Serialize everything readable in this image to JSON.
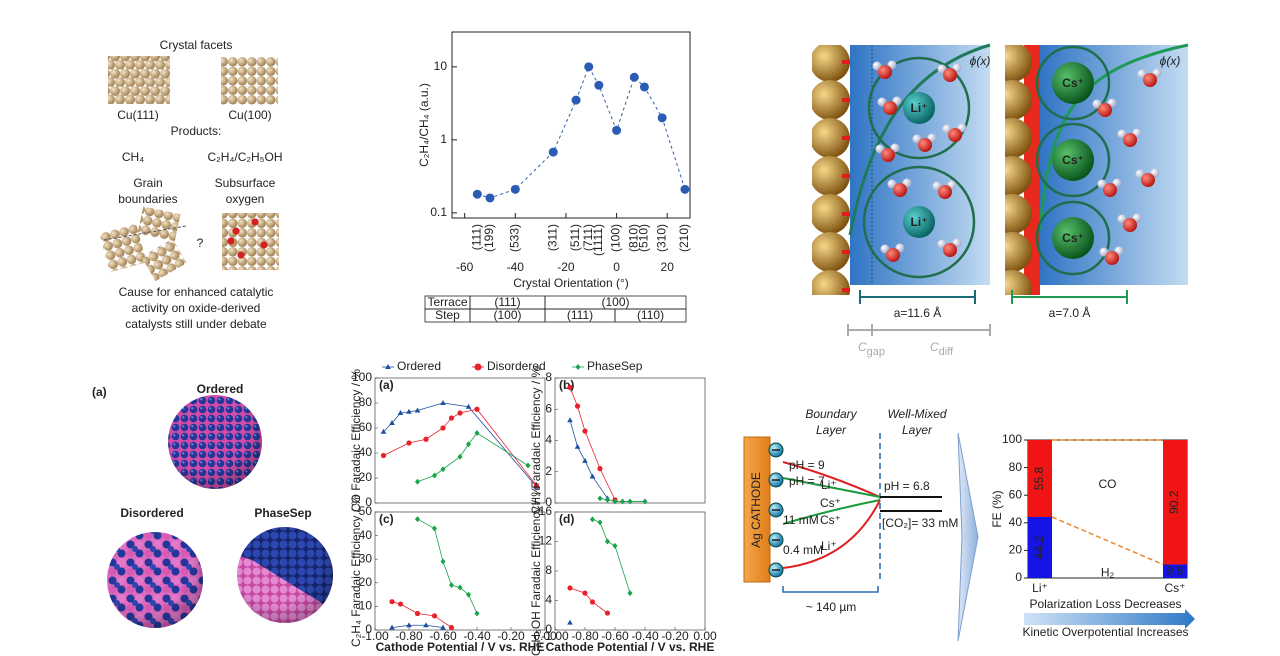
{
  "facets_panel": {
    "title": "Crystal facets",
    "facets": [
      "Cu(111)",
      "Cu(100)"
    ],
    "products_heading": "Products:",
    "products": [
      "CH₄",
      "C₂H₄/C₂H₅OH"
    ],
    "causes": [
      [
        "Grain",
        "boundaries"
      ],
      [
        "Subsurface",
        "oxygen"
      ]
    ],
    "unknown_marker": "?",
    "conclusion": [
      "Cause for enhanced catalytic",
      "activity on oxide-derived",
      "catalysts still under debate"
    ]
  },
  "chart_data": [
    {
      "type": "scatter",
      "log_y": true,
      "line_style": "dashed",
      "color": "#2b5cb4",
      "ylabel": "C₂H₄/CH₄ (a.u.)",
      "xlabel": "Crystal Orientation (°)",
      "x": [
        -55,
        -50,
        -40,
        -25,
        -16,
        -11,
        -7,
        0,
        7,
        11,
        18,
        27
      ],
      "values": [
        0.18,
        0.16,
        0.21,
        0.68,
        3.5,
        10,
        5.6,
        1.35,
        7.2,
        5.3,
        2.0,
        0.21
      ],
      "point_labels": [
        "(111)",
        "(199)",
        "(533)",
        "(311)",
        "(511)",
        "(711)",
        "(1111)",
        "(100)",
        "(810)",
        "(510)",
        "(310)",
        "(210)"
      ],
      "point_label_colors": [
        "#222",
        "#222",
        "#222",
        "#222",
        "#222",
        "#222",
        "#222",
        "#e02020",
        "#222",
        "#222",
        "#222",
        "#222"
      ],
      "xlim": [
        -65,
        29
      ],
      "ylim": [
        0.085,
        30
      ],
      "xticks": [
        -60,
        -40,
        -20,
        0,
        20
      ],
      "yticks": [
        0.1,
        1,
        10
      ]
    },
    {
      "type": "line",
      "panel_label": "(a)",
      "ylabel": "CO Faradaic Efficiency / %",
      "xlim": [
        -1,
        0
      ],
      "ylim": [
        0,
        100
      ],
      "yticks": [
        0,
        20,
        40,
        60,
        80,
        100
      ],
      "series": [
        {
          "name": "Ordered",
          "color": "#1f4fa0",
          "marker": "triangle",
          "x": [
            -0.95,
            -0.9,
            -0.85,
            -0.8,
            -0.75,
            -0.6,
            -0.45,
            -0.05
          ],
          "values": [
            57,
            64,
            72,
            73,
            74,
            80,
            77,
            13
          ]
        },
        {
          "name": "Disordered",
          "color": "#e8212a",
          "marker": "circle",
          "x": [
            -0.95,
            -0.8,
            -0.7,
            -0.6,
            -0.55,
            -0.5,
            -0.4,
            -0.05
          ],
          "values": [
            38,
            48,
            51,
            60,
            68,
            72,
            75,
            14
          ]
        },
        {
          "name": "PhaseSep",
          "color": "#19a34a",
          "marker": "diamond",
          "x": [
            -0.75,
            -0.65,
            -0.6,
            -0.5,
            -0.45,
            -0.4,
            -0.1
          ],
          "values": [
            17,
            22,
            27,
            37,
            47,
            56,
            30
          ]
        }
      ]
    },
    {
      "type": "line",
      "panel_label": "(b)",
      "ylabel": "CH₄ Faradaic Efficiency / %",
      "xlim": [
        -1,
        0
      ],
      "ylim": [
        0,
        8
      ],
      "yticks": [
        0,
        2,
        4,
        6,
        8
      ],
      "series": [
        {
          "color": "#1f4fa0",
          "marker": "triangle",
          "x": [
            -0.9,
            -0.85,
            -0.8,
            -0.75,
            -0.65
          ],
          "values": [
            5.3,
            3.6,
            2.7,
            1.7,
            0.3
          ]
        },
        {
          "color": "#e8212a",
          "marker": "circle",
          "x": [
            -0.9,
            -0.85,
            -0.8,
            -0.7,
            -0.6
          ],
          "values": [
            7.4,
            6.2,
            4.6,
            2.2,
            0.2
          ]
        },
        {
          "color": "#19a34a",
          "marker": "diamond",
          "x": [
            -0.7,
            -0.65,
            -0.6,
            -0.55,
            -0.5,
            -0.4
          ],
          "values": [
            0.3,
            0.2,
            0.1,
            0.1,
            0.1,
            0.1
          ]
        }
      ]
    },
    {
      "type": "line",
      "panel_label": "(c)",
      "ylabel": "C₂H₄ Faradaic Efficiency / %",
      "xlabel": "Cathode Potential / V vs. RHE",
      "xlim": [
        -1,
        0
      ],
      "ylim": [
        0,
        50
      ],
      "yticks": [
        0,
        10,
        20,
        30,
        40,
        50
      ],
      "xticks": [
        {
          "value": -1,
          "label": "-1.00"
        },
        {
          "value": -0.8,
          "label": "-0.80"
        },
        {
          "value": -0.6,
          "label": "-0.60"
        },
        {
          "value": -0.4,
          "label": "-0.40"
        },
        {
          "value": -0.2,
          "label": "-0.20"
        },
        {
          "value": 0,
          "label": "0.00"
        }
      ],
      "series": [
        {
          "color": "#1f4fa0",
          "marker": "triangle",
          "x": [
            -0.9,
            -0.8,
            -0.7,
            -0.6
          ],
          "values": [
            1,
            2,
            2,
            1
          ]
        },
        {
          "color": "#e8212a",
          "marker": "circle",
          "x": [
            -0.9,
            -0.85,
            -0.75,
            -0.65,
            -0.55
          ],
          "values": [
            12,
            11,
            7,
            6,
            1
          ]
        },
        {
          "color": "#19a34a",
          "marker": "diamond",
          "x": [
            -0.75,
            -0.65,
            -0.6,
            -0.55,
            -0.5,
            -0.45,
            -0.4
          ],
          "values": [
            47,
            43,
            29,
            19,
            18,
            15,
            7
          ]
        }
      ]
    },
    {
      "type": "line",
      "panel_label": "(d)",
      "ylabel": "C₂H₅OH Faradaic Efficiency / %",
      "xlabel": "Cathode Potential / V vs. RHE",
      "xlim": [
        -1,
        0
      ],
      "ylim": [
        0,
        16
      ],
      "yticks": [
        0,
        4,
        8,
        12,
        16
      ],
      "xticks": [
        {
          "value": -1,
          "label": "-1.00"
        },
        {
          "value": -0.8,
          "label": "-0.80"
        },
        {
          "value": -0.6,
          "label": "-0.60"
        },
        {
          "value": -0.4,
          "label": "-0.40"
        },
        {
          "value": -0.2,
          "label": "-0.20"
        },
        {
          "value": 0,
          "label": "0.00"
        }
      ],
      "series": [
        {
          "color": "#1f4fa0",
          "marker": "triangle",
          "x": [
            -0.9
          ],
          "values": [
            1
          ]
        },
        {
          "color": "#e8212a",
          "marker": "circle",
          "x": [
            -0.9,
            -0.8,
            -0.75,
            -0.65
          ],
          "values": [
            5.7,
            5,
            3.8,
            2.3
          ]
        },
        {
          "color": "#19a34a",
          "marker": "diamond",
          "x": [
            -0.75,
            -0.7,
            -0.65,
            -0.6,
            -0.5
          ],
          "values": [
            15,
            14.6,
            12,
            11.4,
            5
          ]
        }
      ]
    },
    {
      "type": "bar",
      "stacked": true,
      "ylabel": "FE (%)",
      "categories": [
        "Li⁺",
        "Cs⁺"
      ],
      "series": [
        {
          "name": "H₂",
          "color": "#1414e6",
          "values": [
            44.2,
            9.8
          ]
        },
        {
          "name": "CO",
          "color": "#f01414",
          "values": [
            55.8,
            90.2
          ]
        }
      ],
      "ylim": [
        0,
        100
      ],
      "yticks": [
        0,
        20,
        40,
        60,
        80,
        100
      ],
      "footer": [
        "Polarization Loss Decreases",
        "Kinetic Overpotential Increases"
      ]
    }
  ],
  "orientation_table": {
    "rows": [
      [
        "Terrace",
        "(111)",
        "(100)"
      ],
      [
        "Step",
        "(100)",
        "(111)",
        "(110)"
      ]
    ]
  },
  "double_layer_panel": {
    "potential_label": "ϕ(x)",
    "ions": [
      "Li⁺",
      "Cs⁺"
    ],
    "spacings": [
      "a=11.6 Å",
      "a=7.0 Å"
    ],
    "capacitances": [
      {
        "symbol": "C",
        "subscript": "gap"
      },
      {
        "symbol": "C",
        "subscript": "diff"
      }
    ]
  },
  "nanoparticle_panel": {
    "panel_label": "(a)",
    "structures": [
      "Ordered",
      "Disordered",
      "PhaseSep"
    ]
  },
  "boundary_layer_panel": {
    "cathode": "Ag CATHODE",
    "regions": [
      [
        "Boundary",
        "Layer"
      ],
      [
        "Well-Mixed",
        "Layer"
      ]
    ],
    "surface_conditions": [
      "pH = 9",
      "pH = 7",
      "11 mM",
      "0.4 mM"
    ],
    "ions": [
      "Li⁺",
      "Cs⁺",
      "Cs⁺",
      "Li⁺"
    ],
    "bulk_conditions": [
      "pH = 6.8",
      "[CO₂]= 33 mM"
    ],
    "thickness": "~ 140 µm"
  }
}
